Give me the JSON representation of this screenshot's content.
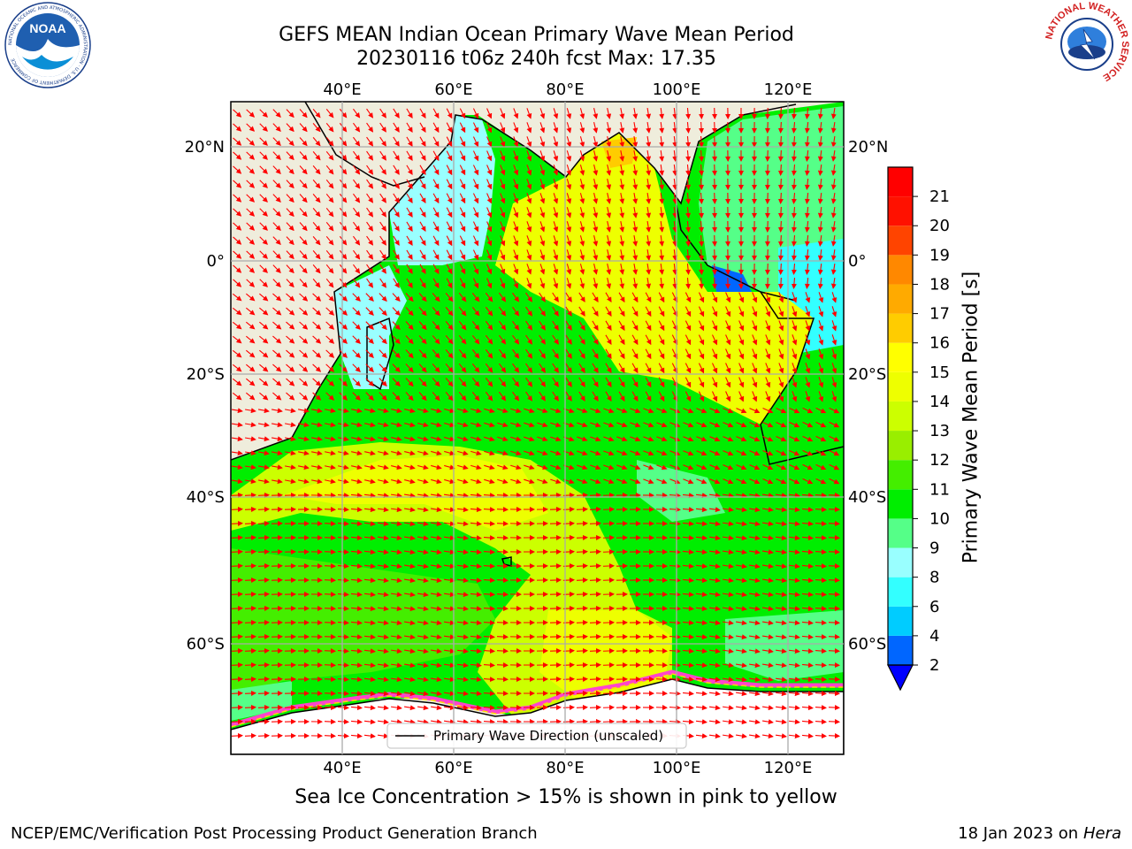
{
  "title": {
    "line1": "GEFS MEAN Indian Ocean Primary Wave Mean Period",
    "line2": "20230116 t06z 240h fcst   Max: 17.35"
  },
  "map": {
    "lon_ticks": [
      "40°E",
      "60°E",
      "80°E",
      "100°E",
      "120°E"
    ],
    "lat_ticks": [
      "20°N",
      "0°",
      "20°S",
      "40°S",
      "60°S"
    ],
    "land_color": "#efeddc",
    "arrow_color": "#ff0000",
    "legend_label": "Primary Wave Direction (unscaled)"
  },
  "colorbar": {
    "label": "Primary Wave Mean Period [s]",
    "ticks": [
      "2",
      "4",
      "6",
      "8",
      "9",
      "10",
      "11",
      "12",
      "13",
      "14",
      "15",
      "16",
      "17",
      "18",
      "19",
      "20",
      "21"
    ],
    "colors": [
      "#0066ff",
      "#00ccff",
      "#33ffff",
      "#99ffff",
      "#55ff88",
      "#00ee00",
      "#44ee00",
      "#99ee00",
      "#ccff00",
      "#eeff00",
      "#ffff00",
      "#ffcc00",
      "#ffaa00",
      "#ff8800",
      "#ff4400",
      "#ff1100",
      "#ff0000"
    ],
    "under_color": "#0000ff"
  },
  "caption": "Sea Ice Concentration > 15% is shown in pink to yellow",
  "footer": {
    "left": "NCEP/EMC/Verification Post Processing Product Generation Branch",
    "date": "18 Jan 2023 on",
    "machine": "Hera"
  },
  "logos": {
    "noaa": {
      "text": "NOAA",
      "ring": "NATIONAL OCEANIC AND ATMOSPHERIC ADMINISTRATION · U.S. DEPARTMENT OF COMMERCE"
    },
    "nws": {
      "ring": "NATIONAL WEATHER SERVICE"
    }
  }
}
